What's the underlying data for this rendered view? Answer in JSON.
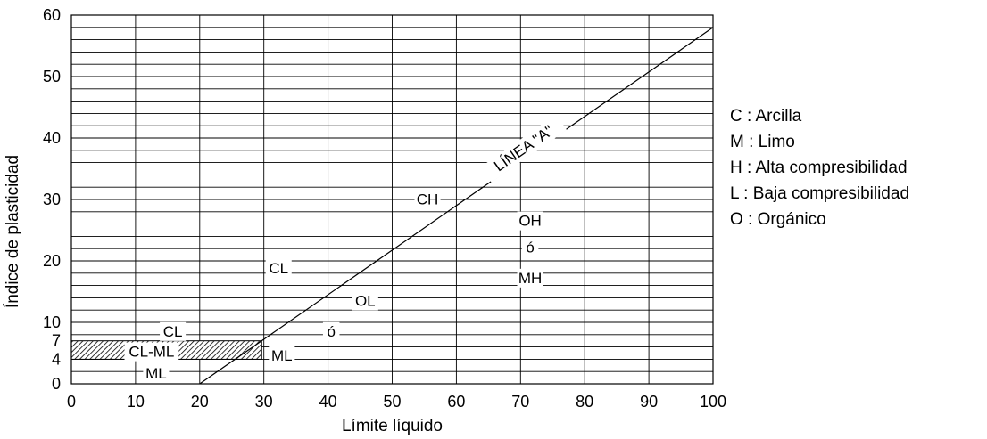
{
  "chart_data": {
    "type": "line",
    "xlabel": "Límite líquido",
    "ylabel": "Índice de plasticidad",
    "xlim": [
      0,
      100
    ],
    "ylim": [
      0,
      60
    ],
    "x_ticks": [
      "0",
      "10",
      "20",
      "30",
      "40",
      "50",
      "60",
      "70",
      "80",
      "90",
      "100"
    ],
    "y_ticks": [
      {
        "value": 0,
        "label": "0"
      },
      {
        "value": 4,
        "label": "4"
      },
      {
        "value": 7,
        "label": "7"
      },
      {
        "value": 10,
        "label": "10"
      },
      {
        "value": 20,
        "label": "20"
      },
      {
        "value": 30,
        "label": "30"
      },
      {
        "value": 40,
        "label": "40"
      },
      {
        "value": 50,
        "label": "50"
      },
      {
        "value": 60,
        "label": "60"
      }
    ],
    "grid": true,
    "grid_minor_y_step": 2,
    "grid_x_step": 10,
    "series": [
      {
        "name": "LÍNEA \"A\"",
        "x": [
          20,
          100
        ],
        "y": [
          0,
          58
        ],
        "color": "#000000"
      }
    ],
    "hatched_band": {
      "x": [
        0,
        29.66
      ],
      "y": [
        4,
        7
      ]
    },
    "zone_labels": [
      {
        "text": "CH",
        "x": 55.5,
        "y": 30.0
      },
      {
        "text": "OH",
        "x": 71.5,
        "y": 26.5
      },
      {
        "text": "ó",
        "x": 71.5,
        "y": 22.2
      },
      {
        "text": "MH",
        "x": 71.5,
        "y": 17.2
      },
      {
        "text": "CL",
        "x": 32.3,
        "y": 18.8
      },
      {
        "text": "OL",
        "x": 45.8,
        "y": 13.5
      },
      {
        "text": "ó",
        "x": 40.5,
        "y": 8.5
      },
      {
        "text": "CL",
        "x": 15.8,
        "y": 8.5
      },
      {
        "text": "CL-ML",
        "x": 12.5,
        "y": 5.2
      },
      {
        "text": "ML",
        "x": 32.8,
        "y": 4.6
      },
      {
        "text": "ML",
        "x": 13.2,
        "y": 1.7
      }
    ],
    "line_label": {
      "text": "LÍNEA \"A\"",
      "x": 70.5,
      "y": 38.3
    }
  },
  "legend": [
    "C : Arcilla",
    "M : Limo",
    "H : Alta compresibilidad",
    "L : Baja compresibilidad",
    "O : Orgánico"
  ]
}
